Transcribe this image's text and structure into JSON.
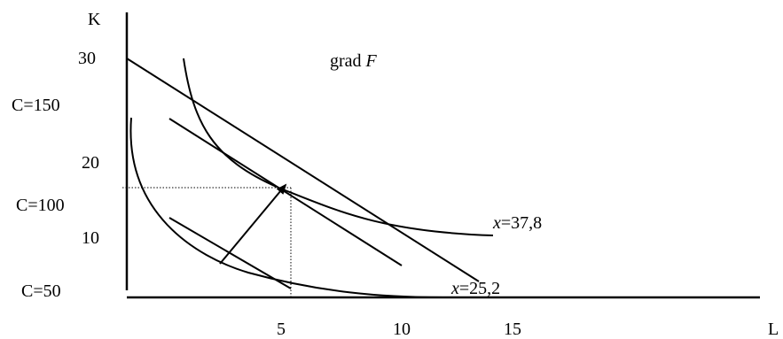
{
  "axes": {
    "y_label": "K",
    "x_label": "L",
    "y_ticks": [
      "30",
      "20",
      "10"
    ],
    "x_ticks": [
      "5",
      "10",
      "15"
    ]
  },
  "budget_labels": [
    "C=150",
    "C=100",
    "C=50"
  ],
  "isoquant_labels": [
    {
      "var": "x",
      "value": "=37,8"
    },
    {
      "var": "x",
      "value": "=25,2"
    }
  ],
  "gradient_label": {
    "prefix": "grad ",
    "symbol": "F"
  }
}
